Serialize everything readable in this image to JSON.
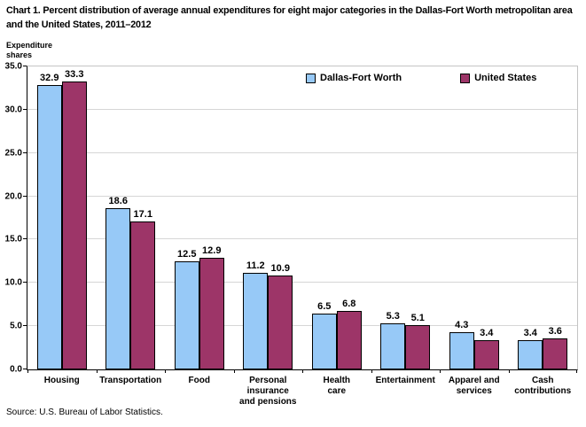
{
  "title": "Chart 1. Percent distribution of average annual expenditures for eight major categories in the Dallas-Fort Worth metropolitan area and the United States, 2011–2012",
  "y_axis_label": "Expenditure\nshares",
  "source": "Source: U.S. Bureau of Labor Statistics.",
  "colors": {
    "dallas_fort_worth": "#97C9F7",
    "united_states": "#9D3568",
    "bar_border": "#000000",
    "gridline": "#D6D6D6",
    "plot_border": "#C4C4C4",
    "axis": "#000000"
  },
  "legend": {
    "items": [
      {
        "label": "Dallas-Fort Worth",
        "color": "#97C9F7"
      },
      {
        "label": "United States",
        "color": "#9D3568"
      }
    ]
  },
  "chart_data": {
    "type": "bar",
    "categories": [
      "Housing",
      "Transportation",
      "Food",
      "Personal insurance and pensions",
      "Health care",
      "Entertainment",
      "Apparel and services",
      "Cash contributions"
    ],
    "tick_labels": [
      "Housing",
      "Transportation",
      "Food",
      "Personal\ninsurance\nand pensions",
      "Health\ncare",
      "Entertainment",
      "Apparel and\nservices",
      "Cash\ncontributions"
    ],
    "series": [
      {
        "name": "Dallas-Fort Worth",
        "values": [
          32.9,
          18.6,
          12.5,
          11.2,
          6.5,
          5.3,
          4.3,
          3.4
        ]
      },
      {
        "name": "United States",
        "values": [
          33.3,
          17.1,
          12.9,
          10.9,
          6.8,
          5.1,
          3.4,
          3.6
        ]
      }
    ],
    "title": "Chart 1. Percent distribution of average annual expenditures for eight major categories in the Dallas-Fort Worth metropolitan area and the United States, 2011–2012",
    "xlabel": "",
    "ylabel": "Expenditure shares",
    "ylim": [
      0,
      35
    ],
    "ytick_step": 5,
    "y_tick_labels": [
      "0.0",
      "5.0",
      "10.0",
      "15.0",
      "20.0",
      "25.0",
      "30.0",
      "35.0"
    ],
    "grid": true,
    "legend_position": "top-right-inside",
    "value_labels": true
  }
}
